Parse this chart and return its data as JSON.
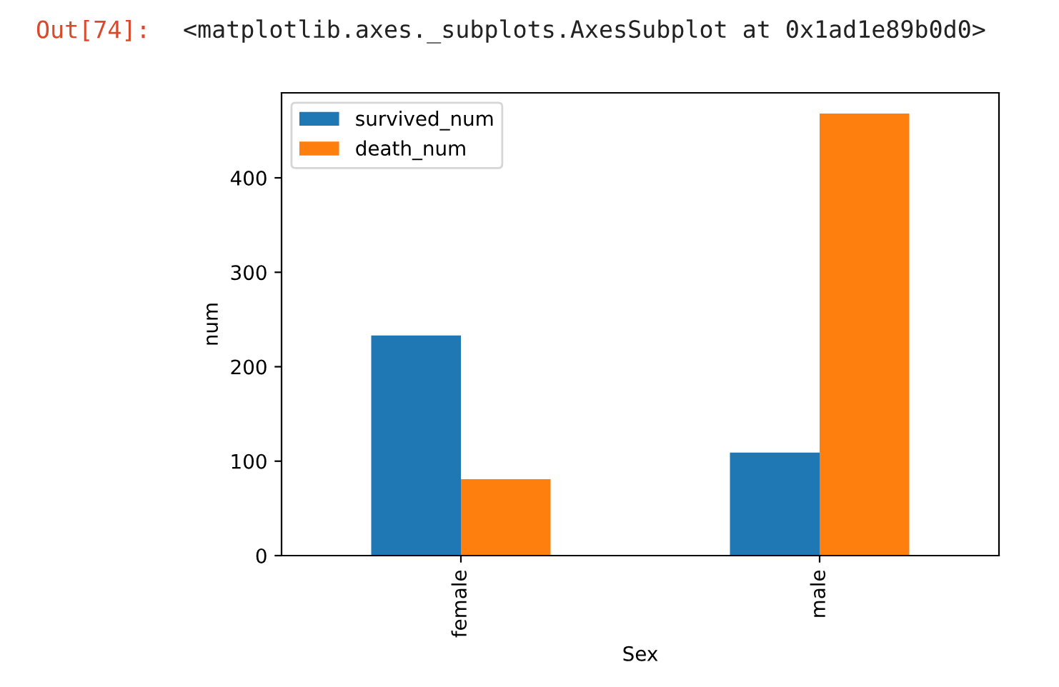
{
  "chart_data": {
    "type": "bar",
    "categories": [
      "female",
      "male"
    ],
    "series": [
      {
        "name": "survived_num",
        "color": "#1f77b4",
        "values": [
          233,
          109
        ]
      },
      {
        "name": "death_num",
        "color": "#ff7f0e",
        "values": [
          81,
          468
        ]
      }
    ],
    "xlabel": "Sex",
    "ylabel": "num",
    "ylim": [
      0,
      490
    ],
    "yticks": [
      0,
      100,
      200,
      300,
      400
    ],
    "legend": "top left",
    "grid": false,
    "annotations": [
      "Out[74]:",
      "<matplotlib.axes._subplots.AxesSubplot at 0x1ad1e89b0d0>"
    ]
  }
}
